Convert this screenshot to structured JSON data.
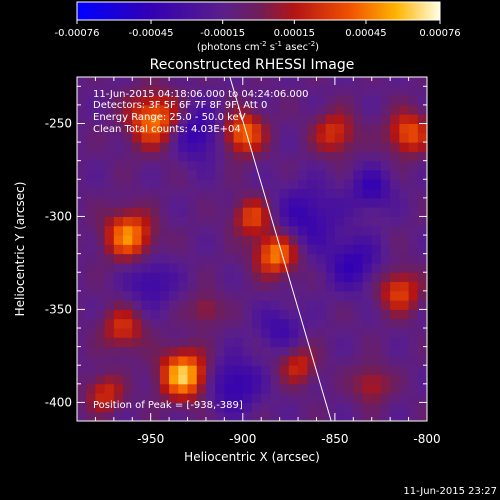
{
  "chart_data": {
    "type": "heatmap",
    "title": "Reconstructed RHESSI Image",
    "xlabel": "Heliocentric X (arcsec)",
    "ylabel": "Heliocentric Y (arcsec)",
    "xlim": [
      -990,
      -800
    ],
    "ylim": [
      -410,
      -225
    ],
    "x_ticks": [
      {
        "value": -950,
        "label": "-950"
      },
      {
        "value": -900,
        "label": "-900"
      },
      {
        "value": -850,
        "label": "-850"
      },
      {
        "value": -800,
        "label": "-800"
      }
    ],
    "y_ticks": [
      {
        "value": -250,
        "label": "-250"
      },
      {
        "value": -300,
        "label": "-300"
      },
      {
        "value": -350,
        "label": "-350"
      },
      {
        "value": -400,
        "label": "-400"
      }
    ],
    "colorbar": {
      "range": [
        -0.00076,
        0.00076
      ],
      "ticks": [
        {
          "value": -0.00076,
          "label": "-0.00076"
        },
        {
          "value": -0.00045,
          "label": "-0.00045"
        },
        {
          "value": -0.00015,
          "label": "-0.00015"
        },
        {
          "value": 0.00015,
          "label": "0.00015"
        },
        {
          "value": 0.00045,
          "label": "0.00045"
        },
        {
          "value": 0.00076,
          "label": "0.00076"
        }
      ],
      "unit_main": "(photons cm",
      "unit_exp1": "-2",
      "unit_mid": " s",
      "unit_exp2": "-1",
      "unit_mid2": " asec",
      "unit_exp3": "-2",
      "unit_end": ")"
    },
    "annotations": {
      "time_range": "11-Jun-2015 04:18:06.000 to 04:24:06.000",
      "detectors": "Detectors: 3F 5F 6F 7F 8F 9F, Att 0",
      "energy": "Energy Range: 25.0 - 50.0 keV",
      "method": "Clean     Total counts: 4.03E+04",
      "peak": "Position of Peak = [-938,-389]"
    },
    "peak_position": [
      -938,
      -389
    ],
    "limb_line": [
      [
        -907,
        -225
      ],
      [
        -852,
        -410
      ]
    ],
    "hot_spots": [
      {
        "x": -932,
        "y": -385,
        "r": 9,
        "v": 0.00076
      },
      {
        "x": -962,
        "y": -310,
        "r": 9,
        "v": 0.00062
      },
      {
        "x": -948,
        "y": -248,
        "r": 10,
        "v": 0.0006
      },
      {
        "x": -882,
        "y": -320,
        "r": 8,
        "v": 0.00062
      },
      {
        "x": -900,
        "y": -255,
        "r": 8,
        "v": 0.00058
      },
      {
        "x": -810,
        "y": -255,
        "r": 8,
        "v": 0.0005
      },
      {
        "x": -815,
        "y": -340,
        "r": 8,
        "v": 0.00045
      },
      {
        "x": -895,
        "y": -300,
        "r": 7,
        "v": 0.00045
      },
      {
        "x": -850,
        "y": -255,
        "r": 8,
        "v": 0.0004
      },
      {
        "x": -965,
        "y": -360,
        "r": 8,
        "v": 0.00038
      },
      {
        "x": -870,
        "y": -380,
        "r": 7,
        "v": 0.00035
      },
      {
        "x": -975,
        "y": -395,
        "r": 7,
        "v": 0.00038
      },
      {
        "x": -830,
        "y": -390,
        "r": 7,
        "v": 0.0003
      },
      {
        "x": -920,
        "y": -350,
        "r": 6,
        "v": 0.00025
      }
    ],
    "cold_spots": [
      {
        "x": -925,
        "y": -255,
        "r": 10,
        "v": -0.00035
      },
      {
        "x": -865,
        "y": -300,
        "r": 12,
        "v": -0.0003
      },
      {
        "x": -840,
        "y": -325,
        "r": 10,
        "v": -0.00032
      },
      {
        "x": -905,
        "y": -390,
        "r": 10,
        "v": -0.00035
      },
      {
        "x": -950,
        "y": -335,
        "r": 9,
        "v": -0.00028
      },
      {
        "x": -830,
        "y": -285,
        "r": 8,
        "v": -0.0003
      },
      {
        "x": -880,
        "y": -360,
        "r": 8,
        "v": -0.00025
      }
    ],
    "grid": false
  },
  "footer": {
    "timestamp": "11-Jun-2015 23:27"
  }
}
